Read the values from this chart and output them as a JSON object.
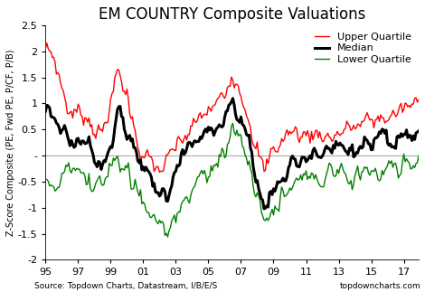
{
  "title": "EM COUNTRY Composite Valuations",
  "ylabel": "Z-Score Composite (PE, Fwd PE, P/CF, P/B)",
  "xlabel_source": "Source: Topdown Charts, Datastream, I/B/E/S",
  "xlabel_brand": "topdowncharts.com",
  "ylim": [
    -2.0,
    2.5
  ],
  "yticks": [
    -2.0,
    -1.5,
    -1.0,
    -0.5,
    0.0,
    0.5,
    1.0,
    1.5,
    2.0,
    2.5
  ],
  "xtick_labels": [
    "95",
    "97",
    "99",
    "01",
    "03",
    "05",
    "07",
    "09",
    "11",
    "13",
    "15",
    "17"
  ],
  "xtick_positions": [
    0,
    24,
    48,
    72,
    96,
    120,
    144,
    168,
    192,
    216,
    240,
    264
  ],
  "upper_color": "#FF0000",
  "median_color": "#000000",
  "lower_color": "#008000",
  "upper_label": "Upper Quartile",
  "median_label": "Median",
  "lower_label": "Lower Quartile",
  "upper_lw": 1.0,
  "median_lw": 2.2,
  "lower_lw": 1.0,
  "hline_color": "#aaaaaa",
  "hline_lw": 0.8,
  "background_color": "#ffffff",
  "title_fontsize": 12,
  "label_fontsize": 7.0,
  "tick_fontsize": 8,
  "legend_fontsize": 8,
  "source_fontsize": 6.5,
  "n_points": 276
}
